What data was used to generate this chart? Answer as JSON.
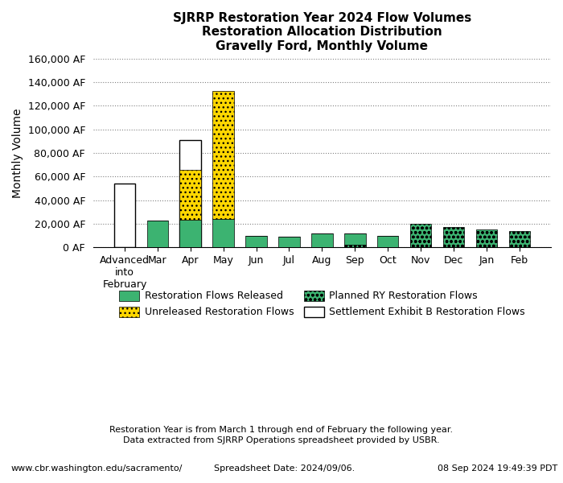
{
  "title_line1": "SJRRP Restoration Year 2024 Flow Volumes",
  "title_line2": "Restoration Allocation Distribution",
  "title_line3": "Gravelly Ford, Monthly Volume",
  "ylabel": "Monthly Volume",
  "ylim": [
    0,
    160000
  ],
  "yticks": [
    0,
    20000,
    40000,
    60000,
    80000,
    100000,
    120000,
    140000,
    160000
  ],
  "ytick_labels": [
    "0 AF",
    "20,000 AF",
    "40,000 AF",
    "60,000 AF",
    "80,000 AF",
    "100,000 AF",
    "120,000 AF",
    "140,000 AF",
    "160,000 AF"
  ],
  "categories": [
    "Advanced\ninto\nFebruary",
    "Mar",
    "Apr",
    "May",
    "Jun",
    "Jul",
    "Aug",
    "Sep",
    "Oct",
    "Nov",
    "Dec",
    "Jan",
    "Feb"
  ],
  "restoration_flows_released": [
    0,
    23000,
    23500,
    24000,
    9500,
    9000,
    12000,
    12000,
    9500,
    11500,
    0,
    0,
    0
  ],
  "unreleased_restoration_flows": [
    0,
    0,
    42000,
    108500,
    0,
    0,
    0,
    0,
    0,
    0,
    0,
    0,
    0
  ],
  "settlement_exhibit_b": [
    54000,
    0,
    91000,
    0,
    0,
    0,
    0,
    0,
    0,
    0,
    0,
    0,
    0
  ],
  "planned_ry_restoration_flows": [
    0,
    0,
    0,
    0,
    0,
    0,
    0,
    2500,
    0,
    20000,
    17000,
    15500,
    14000
  ],
  "color_released": "#3cb371",
  "color_unreleased": "#ffd700",
  "color_settlement": "#ffffff",
  "color_planned": "#3cb371",
  "footnote1": "Restoration Year is from March 1 through end of February the following year.",
  "footnote2": "Data extracted from SJRRP Operations spreadsheet provided by USBR.",
  "footnote3": "Spreadsheet Date: 2024/09/06.",
  "url": "www.cbr.washington.edu/sacramento/",
  "timestamp": "08 Sep 2024 19:49:39 PDT"
}
